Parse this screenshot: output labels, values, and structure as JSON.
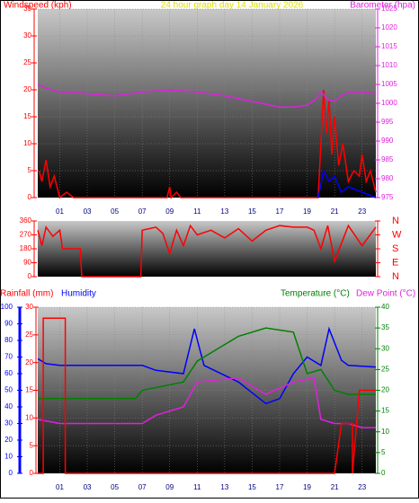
{
  "chart_data": [
    {
      "type": "line",
      "title": "24 hour graph day   14 January 2026",
      "ylabel": "Windspeed (kph)",
      "y2label": "Barometer (hpa)",
      "xlim": [
        -0.6,
        24
      ],
      "xticks": [
        {
          "value": 1,
          "label": "01"
        },
        {
          "value": 3,
          "label": "03"
        },
        {
          "value": 5,
          "label": "05"
        },
        {
          "value": 7,
          "label": "07"
        },
        {
          "value": 9,
          "label": "09"
        },
        11,
        13,
        15,
        17,
        19,
        21,
        23
      ],
      "ylim": [
        0,
        35
      ],
      "yticks": [
        0,
        5,
        10,
        15,
        20,
        25,
        30,
        35
      ],
      "y2lim": [
        975,
        1025
      ],
      "y2ticks": [
        975,
        980,
        985,
        990,
        995,
        1000,
        1005,
        1010,
        1015,
        1020,
        1025
      ],
      "series": [
        {
          "color": "#ff0000",
          "x": [
            -0.5,
            -0.3,
            0,
            0.3,
            0.6,
            1,
            1.5,
            2,
            8.8,
            9,
            9.1,
            9.5,
            9.8,
            19.8,
            20,
            20.2,
            20.4,
            20.6,
            20.8,
            21,
            21.3,
            21.6,
            22,
            22.4,
            22.8,
            23,
            23.3,
            23.6,
            24
          ],
          "values": [
            5,
            3,
            7,
            2,
            4,
            0,
            1,
            0,
            0,
            2,
            0,
            1,
            0,
            0,
            10,
            20,
            12,
            18,
            8,
            15,
            6,
            10,
            3,
            5,
            4,
            8,
            3,
            5,
            1
          ]
        },
        {
          "color": "#0000ff",
          "x": [
            19.8,
            20.2,
            20.6,
            21,
            21.5,
            22,
            23,
            24
          ],
          "values": [
            0,
            5,
            3,
            4,
            1,
            2,
            1,
            0
          ]
        },
        {
          "color": "#e020e0",
          "axis": "y2",
          "x": [
            -0.6,
            0,
            1,
            2,
            3,
            5,
            7,
            9,
            11,
            13,
            15,
            17,
            18,
            19,
            19.6,
            20,
            20.5,
            21,
            21.5,
            22,
            23,
            24
          ],
          "values": [
            1005,
            1004,
            1003,
            1003,
            1002.5,
            1002,
            1003,
            1003.5,
            1003,
            1002,
            1000.5,
            999,
            999,
            999.5,
            1001,
            1003,
            1001,
            1000.5,
            1002,
            1003,
            1003,
            1002.5
          ]
        }
      ]
    },
    {
      "type": "line",
      "xlim": [
        -0.6,
        24
      ],
      "ylim": [
        0,
        360
      ],
      "yticks": [
        0,
        90,
        180,
        270,
        360
      ],
      "y2lim": [
        0,
        360
      ],
      "y2ticks": [
        {
          "value": 0,
          "label": "N"
        },
        {
          "value": 90,
          "label": "E"
        },
        {
          "value": 180,
          "label": "S"
        },
        {
          "value": 270,
          "label": "W"
        },
        {
          "value": 360,
          "label": "N"
        }
      ],
      "series": [
        {
          "color": "#ff0000",
          "x": [
            -0.6,
            -0.3,
            0,
            0.5,
            1,
            1.2,
            2.5,
            2.6,
            6.9,
            7,
            8,
            8.5,
            9,
            9.5,
            10,
            10.5,
            11,
            12,
            13,
            14,
            15,
            16,
            17,
            18,
            19,
            19.5,
            20,
            20.5,
            21,
            22,
            23,
            24
          ],
          "values": [
            300,
            200,
            320,
            260,
            300,
            180,
            180,
            0,
            0,
            300,
            320,
            280,
            150,
            300,
            200,
            330,
            270,
            300,
            250,
            310,
            230,
            300,
            330,
            320,
            320,
            300,
            180,
            330,
            100,
            330,
            200,
            320
          ]
        }
      ]
    },
    {
      "type": "line",
      "ylabel": "Rainfall (mm)",
      "xlim": [
        -0.6,
        24
      ],
      "xticks": [
        {
          "value": 1,
          "label": "01"
        },
        {
          "value": 3,
          "label": "03"
        },
        {
          "value": 5,
          "label": "05"
        },
        {
          "value": 7,
          "label": "07"
        },
        {
          "value": 9,
          "label": "09"
        },
        11,
        13,
        15,
        17,
        19,
        21,
        23
      ],
      "ylim": [
        0,
        30
      ],
      "yticks": [
        0,
        5,
        10,
        15,
        20,
        25,
        30
      ],
      "y2lim": [
        0,
        40
      ],
      "y2ticks": [
        0,
        5,
        10,
        15,
        20,
        25,
        30,
        35,
        40
      ],
      "y3lim": [
        0,
        100
      ],
      "y3ticks": [
        0,
        10,
        20,
        30,
        40,
        50,
        60,
        70,
        80,
        90,
        100
      ],
      "series": [
        {
          "name": "Humidity",
          "color": "#0000ff",
          "axis": "y3",
          "x": [
            -0.6,
            0,
            1,
            7,
            8,
            10,
            10.8,
            11.5,
            14,
            16,
            17,
            18,
            19,
            20,
            20.6,
            21.5,
            22,
            24
          ],
          "values": [
            69,
            66,
            65,
            65,
            62,
            60,
            87,
            65,
            55,
            42,
            45,
            60,
            70,
            65,
            87,
            68,
            65,
            64
          ]
        },
        {
          "name": "Temperature (°C)",
          "color": "#008000",
          "axis": "y2",
          "x": [
            -0.6,
            6.5,
            7,
            10,
            11,
            14,
            16,
            18,
            19,
            20,
            21,
            22,
            24
          ],
          "values": [
            18,
            18,
            20,
            22,
            27,
            33,
            35,
            34,
            24,
            25,
            20,
            19,
            19
          ]
        },
        {
          "name": "Dew Point (°C)",
          "color": "#e020e0",
          "axis": "y2",
          "x": [
            -0.6,
            1,
            7,
            8,
            10,
            11,
            14,
            16,
            18,
            19.5,
            20,
            21,
            22,
            23,
            24
          ],
          "values": [
            13,
            12,
            12,
            14,
            16,
            22,
            23,
            19,
            22,
            23,
            13,
            12,
            12,
            11,
            11
          ]
        },
        {
          "color": "#ff0000",
          "x": [
            -0.6,
            -0.2,
            -0.2,
            1.4,
            1.4,
            21,
            21.5,
            22.3,
            22.3,
            22.8,
            23,
            24
          ],
          "values": [
            0,
            0,
            28,
            28,
            0,
            0,
            9,
            9,
            0,
            15,
            15,
            15
          ]
        }
      ]
    }
  ]
}
